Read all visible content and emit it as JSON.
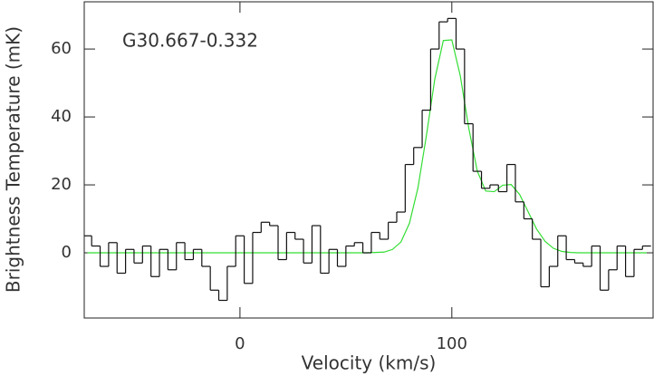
{
  "chart_data": {
    "type": "step",
    "annotation": "G30.667-0.332",
    "xlabel": "Velocity (km/s)",
    "ylabel": "Brightness Temperature (mK)",
    "xlim": [
      -73.5,
      195
    ],
    "ylim": [
      -19.2,
      73.9
    ],
    "xticks": [
      0,
      100
    ],
    "yticks": [
      0,
      20,
      40,
      60
    ],
    "x": [
      -72,
      -68,
      -64,
      -60,
      -56,
      -52,
      -48,
      -44,
      -40,
      -36,
      -32,
      -28,
      -24,
      -20,
      -16,
      -12,
      -8,
      -4,
      0,
      4,
      8,
      12,
      16,
      20,
      24,
      28,
      32,
      36,
      40,
      44,
      48,
      52,
      56,
      60,
      64,
      68,
      72,
      76,
      80,
      84,
      88,
      92,
      96,
      100,
      104,
      108,
      112,
      116,
      120,
      124,
      128,
      132,
      136,
      140,
      144,
      148,
      152,
      156,
      160,
      164,
      168,
      172,
      176,
      180,
      184,
      188,
      192
    ],
    "series": [
      {
        "color": "#111111",
        "values": [
          5,
          2,
          -4,
          3,
          -6,
          1,
          -3,
          2,
          -7,
          1,
          -5,
          3,
          -2,
          1,
          -4,
          -11,
          -14,
          -4,
          5,
          -9,
          6,
          9,
          8,
          -2,
          6,
          4,
          -3,
          8,
          -6,
          1,
          -4,
          2,
          3,
          0,
          6,
          4,
          9,
          12,
          26,
          31,
          42,
          60,
          68,
          69,
          60,
          38,
          24,
          19,
          20,
          18,
          26,
          15,
          10,
          4,
          -10,
          -4,
          5,
          -2,
          -3,
          -4,
          2,
          -11,
          -5,
          2,
          -7,
          1,
          2
        ]
      },
      {
        "color": "#33dd33",
        "values": [
          0,
          0,
          0,
          0,
          0,
          0,
          0,
          0,
          0,
          0,
          0,
          0,
          0,
          0,
          0,
          0,
          0,
          0,
          0,
          0,
          0,
          0,
          0,
          0,
          0,
          0,
          0,
          0,
          0,
          0,
          0,
          0,
          0,
          0,
          0.1,
          0.2,
          1.0,
          3.2,
          8.7,
          19.1,
          34.5,
          51.3,
          62.5,
          62.7,
          52.1,
          36.7,
          24.1,
          18.2,
          18.0,
          19.9,
          20.1,
          17.2,
          12.1,
          7.0,
          3.4,
          1.3,
          0.4,
          0.1,
          0,
          0,
          0,
          0,
          0,
          0,
          0,
          0,
          0
        ]
      }
    ]
  }
}
